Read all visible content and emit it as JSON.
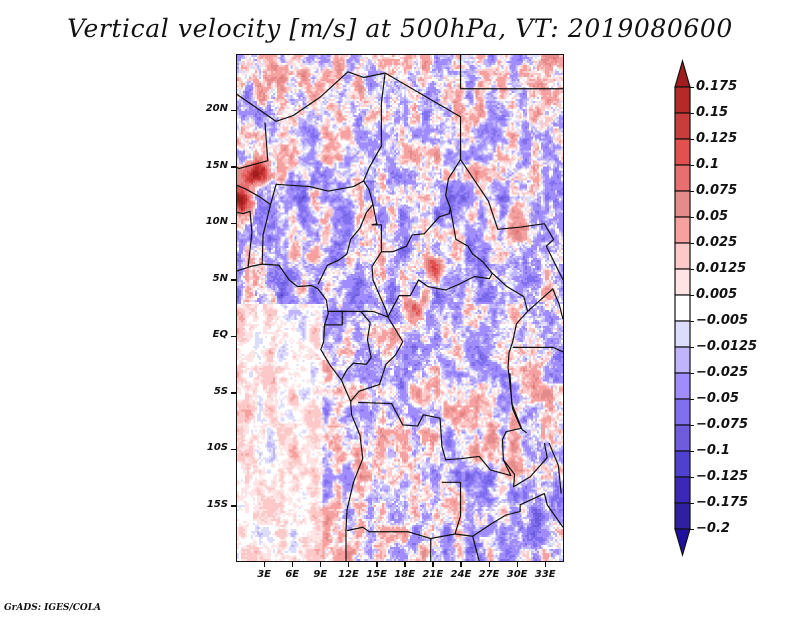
{
  "title": "Vertical velocity [m/s] at 500hPa, VT: 2019080600",
  "footer": "GrADS: IGES/COLA",
  "map": {
    "variable": "Vertical velocity",
    "units": "m/s",
    "level": "500hPa",
    "valid_time": "2019080600",
    "lon_range": [
      0,
      35
    ],
    "lat_range": [
      -20,
      25
    ],
    "x_ticks": [
      {
        "lon": 3,
        "label": "3E"
      },
      {
        "lon": 6,
        "label": "6E"
      },
      {
        "lon": 9,
        "label": "9E"
      },
      {
        "lon": 12,
        "label": "12E"
      },
      {
        "lon": 15,
        "label": "15E"
      },
      {
        "lon": 18,
        "label": "18E"
      },
      {
        "lon": 21,
        "label": "21E"
      },
      {
        "lon": 24,
        "label": "24E"
      },
      {
        "lon": 27,
        "label": "27E"
      },
      {
        "lon": 30,
        "label": "30E"
      },
      {
        "lon": 33,
        "label": "33E"
      }
    ],
    "y_ticks": [
      {
        "lat": 20,
        "label": "20N"
      },
      {
        "lat": 15,
        "label": "15N"
      },
      {
        "lat": 10,
        "label": "10N"
      },
      {
        "lat": 5,
        "label": "5N"
      },
      {
        "lat": 0,
        "label": "EQ"
      },
      {
        "lat": -5,
        "label": "5S"
      },
      {
        "lat": -10,
        "label": "10S"
      },
      {
        "lat": -15,
        "label": "15S"
      }
    ]
  },
  "colorbar": {
    "labels": [
      "0.175",
      "0.15",
      "0.125",
      "0.1",
      "0.075",
      "0.05",
      "0.025",
      "0.0125",
      "0.005",
      "-0.005",
      "-0.0125",
      "-0.025",
      "-0.05",
      "-0.075",
      "-0.1",
      "-0.125",
      "-0.175",
      "-0.2"
    ],
    "levels": [
      0.175,
      0.15,
      0.125,
      0.1,
      0.075,
      0.05,
      0.025,
      0.0125,
      0.005,
      -0.005,
      -0.0125,
      -0.025,
      -0.05,
      -0.075,
      -0.1,
      -0.125,
      -0.175,
      -0.2
    ],
    "colors": [
      "#a11c1c",
      "#b72828",
      "#c83c3c",
      "#e35050",
      "#e86f6f",
      "#e48c8c",
      "#f6a0a0",
      "#fcc8c8",
      "#fee4e4",
      "#ffffff",
      "#dcdcfc",
      "#c0b4fc",
      "#a08cfc",
      "#8070f0",
      "#6e5cdc",
      "#5040d0",
      "#3c28b8",
      "#2e20a0",
      "#2010a0"
    ]
  }
}
